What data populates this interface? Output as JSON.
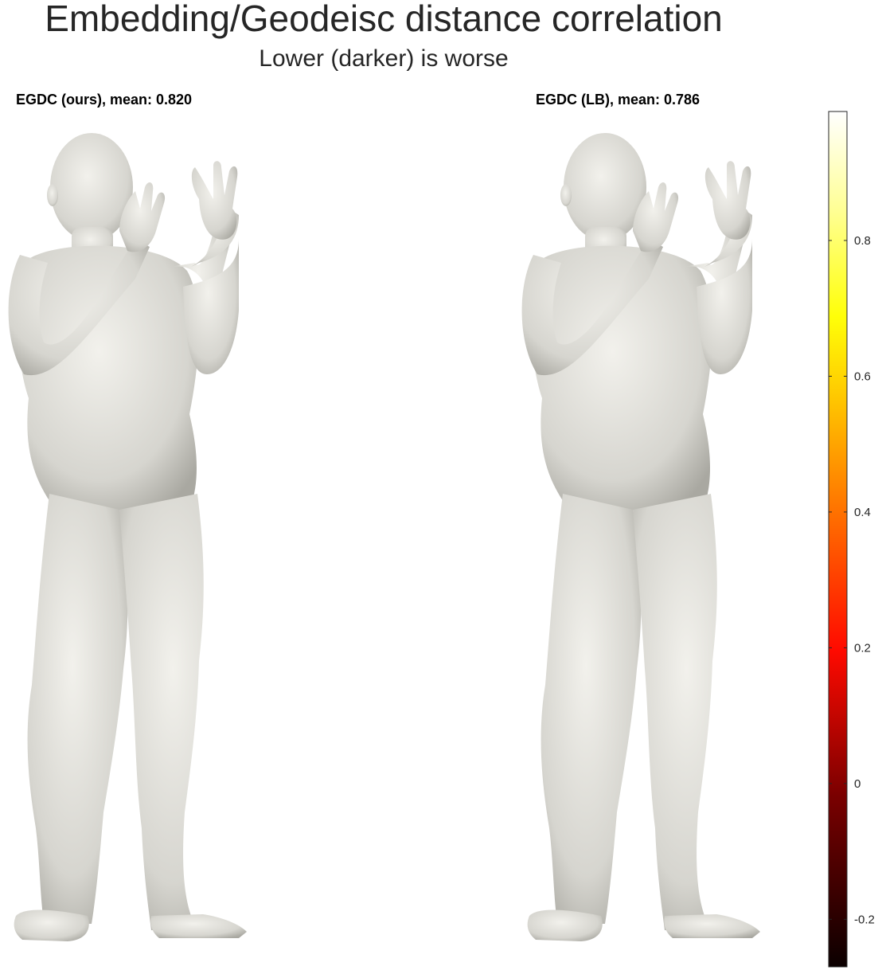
{
  "title": "Embedding/Geodeisc distance correlation",
  "subtitle": "Lower (darker) is worse",
  "chart_data": {
    "type": "mesh-heatmap",
    "panels": [
      {
        "title": "EGDC (ours), mean: 0.820",
        "metric": "EGDC",
        "method": "ours",
        "mean": 0.82
      },
      {
        "title": "EGDC (LB), mean: 0.786",
        "metric": "EGDC",
        "method": "LB",
        "mean": 0.786
      }
    ],
    "colorbar": {
      "colormap": "hot",
      "clim": [
        -0.27,
        0.99
      ],
      "ticks": [
        -0.2,
        0,
        0.2,
        0.4,
        0.6,
        0.8
      ],
      "tick_labels": [
        "-0.2",
        "0",
        "0.2",
        "0.4",
        "0.6",
        "0.8"
      ],
      "location": "right"
    }
  },
  "colors": {
    "skin": "#d9d8d2",
    "yellow": "#e6df2a",
    "orange": "#e89a18",
    "red": "#cf3a10",
    "dark": "#7a1206"
  }
}
